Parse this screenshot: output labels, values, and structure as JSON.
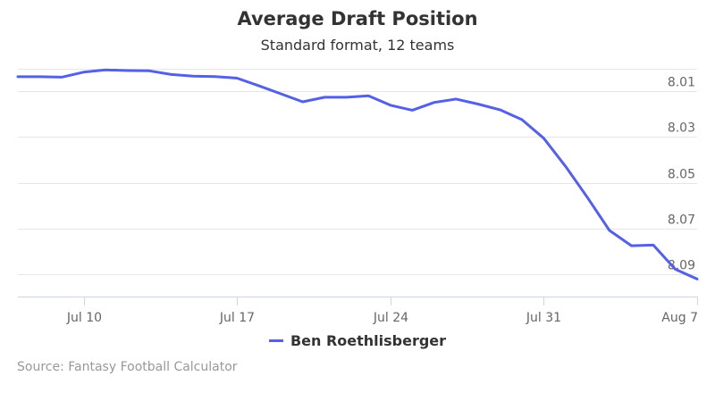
{
  "chart_data": {
    "type": "line",
    "title": "Average Draft Position",
    "subtitle": "Standard format, 12 teams",
    "x_tick_labels": [
      "Jul 10",
      "Jul 17",
      "Jul 24",
      "Jul 31",
      "Aug 7"
    ],
    "y_tick_labels": [
      "8.01",
      "8.03",
      "8.05",
      "8.07",
      "8.09"
    ],
    "y_axis_reversed": true,
    "ylim": [
      8.0,
      8.1
    ],
    "xlim": [
      "Jul 7",
      "Aug 7"
    ],
    "grid": true,
    "legend_position": "bottom-center",
    "series": [
      {
        "name": "Ben Roethlisberger",
        "color": "#5460E6",
        "points": [
          {
            "x": "Jul 7",
            "y": 8.0035
          },
          {
            "x": "Jul 8",
            "y": 8.0035
          },
          {
            "x": "Jul 9",
            "y": 8.0037
          },
          {
            "x": "Jul 10",
            "y": 8.0015
          },
          {
            "x": "Jul 11",
            "y": 8.0005
          },
          {
            "x": "Jul 12",
            "y": 8.0008
          },
          {
            "x": "Jul 13",
            "y": 8.0009
          },
          {
            "x": "Jul 14",
            "y": 8.0025
          },
          {
            "x": "Jul 15",
            "y": 8.0032
          },
          {
            "x": "Jul 16",
            "y": 8.0034
          },
          {
            "x": "Jul 17",
            "y": 8.0041
          },
          {
            "x": "Jul 18",
            "y": 8.0075
          },
          {
            "x": "Jul 19",
            "y": 8.011
          },
          {
            "x": "Jul 20",
            "y": 8.0145
          },
          {
            "x": "Jul 21",
            "y": 8.0125
          },
          {
            "x": "Jul 22",
            "y": 8.0125
          },
          {
            "x": "Jul 23",
            "y": 8.0119
          },
          {
            "x": "Jul 24",
            "y": 8.016
          },
          {
            "x": "Jul 25",
            "y": 8.0182
          },
          {
            "x": "Jul 26",
            "y": 8.0148
          },
          {
            "x": "Jul 27",
            "y": 8.0133
          },
          {
            "x": "Jul 28",
            "y": 8.0155
          },
          {
            "x": "Jul 29",
            "y": 8.018
          },
          {
            "x": "Jul 30",
            "y": 8.0223
          },
          {
            "x": "Jul 31",
            "y": 8.0305
          },
          {
            "x": "Aug 1",
            "y": 8.0429
          },
          {
            "x": "Aug 2",
            "y": 8.0566
          },
          {
            "x": "Aug 3",
            "y": 8.071
          },
          {
            "x": "Aug 4",
            "y": 8.0777
          },
          {
            "x": "Aug 5",
            "y": 8.0774
          },
          {
            "x": "Aug 6",
            "y": 8.088
          },
          {
            "x": "Aug 7",
            "y": 8.0923
          }
        ]
      }
    ]
  },
  "source": "Source: Fantasy Football Calculator"
}
